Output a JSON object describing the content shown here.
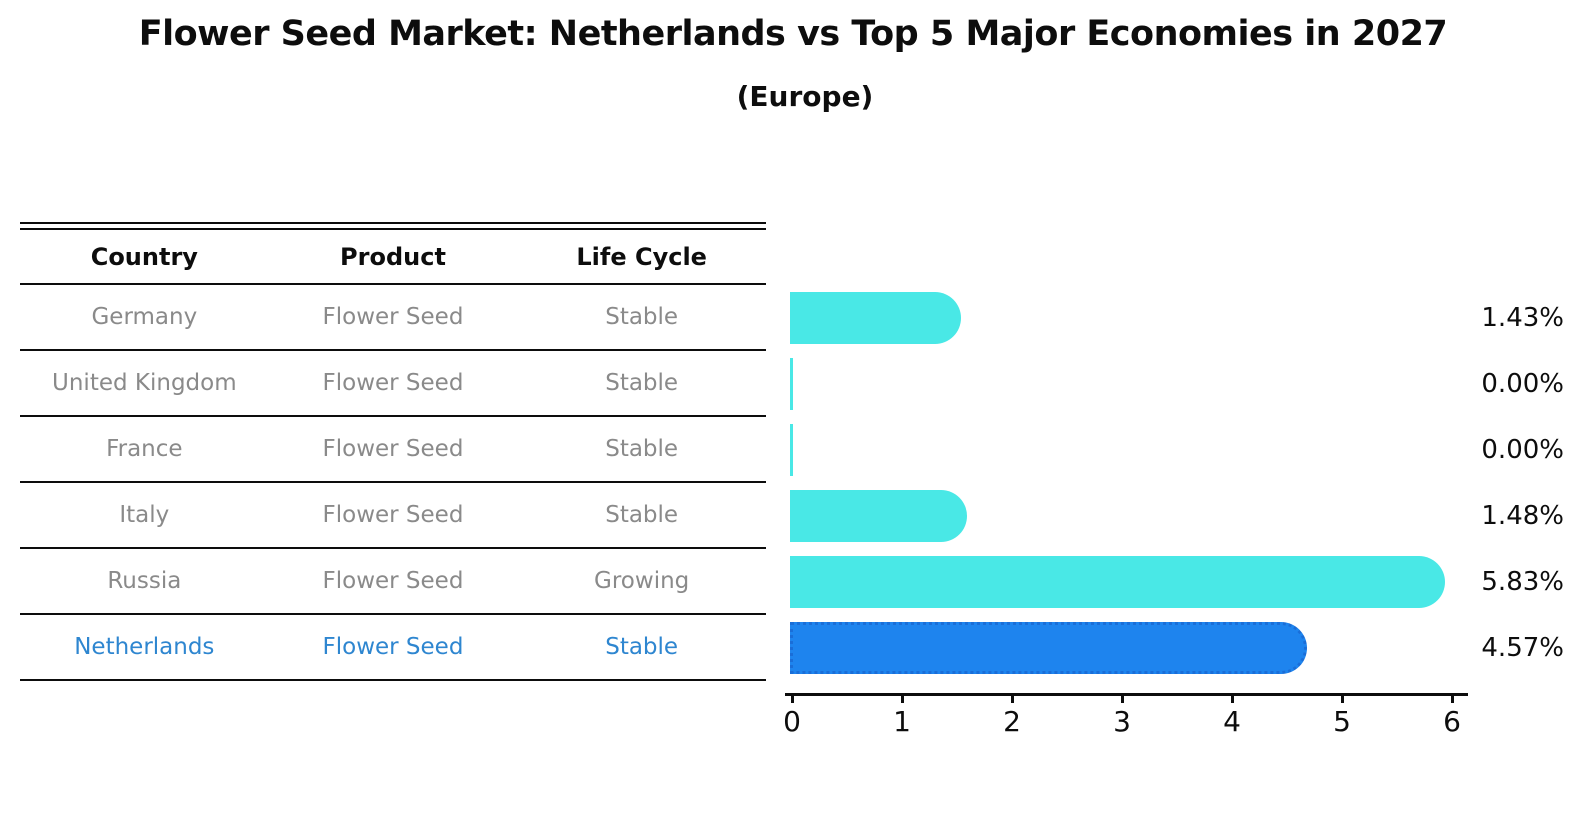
{
  "title": "Flower Seed Market: Netherlands vs Top 5 Major Economies in 2027",
  "subtitle": "(Europe)",
  "table": {
    "headers": [
      "Country",
      "Product",
      "Life Cycle"
    ],
    "rows": [
      {
        "country": "Germany",
        "product": "Flower Seed",
        "life_cycle": "Stable",
        "highlighted": false
      },
      {
        "country": "United Kingdom",
        "product": "Flower Seed",
        "life_cycle": "Stable",
        "highlighted": false
      },
      {
        "country": "France",
        "product": "Flower Seed",
        "life_cycle": "Stable",
        "highlighted": false
      },
      {
        "country": "Italy",
        "product": "Flower Seed",
        "life_cycle": "Stable",
        "highlighted": false
      },
      {
        "country": "Russia",
        "product": "Flower Seed",
        "life_cycle": "Growing",
        "highlighted": false
      },
      {
        "country": "Netherlands",
        "product": "Flower Seed",
        "life_cycle": "Stable",
        "highlighted": true
      }
    ]
  },
  "chart_data": {
    "type": "bar",
    "orientation": "horizontal",
    "title": "Flower Seed Market: Netherlands vs Top 5 Major Economies in 2027",
    "subtitle": "(Europe)",
    "categories": [
      "Germany",
      "United Kingdom",
      "France",
      "Italy",
      "Russia",
      "Netherlands"
    ],
    "values": [
      1.43,
      0.0,
      0.0,
      1.48,
      5.83,
      4.57
    ],
    "value_labels": [
      "1.43%",
      "0.00%",
      "0.00%",
      "1.48%",
      "5.83%",
      "4.57%"
    ],
    "xticks": [
      0,
      1,
      2,
      3,
      4,
      5,
      6
    ],
    "xlim": [
      0,
      6.15
    ],
    "grid": false,
    "legend": false,
    "highlight_index": 5,
    "bar_color": "#49e8e6",
    "highlight_bar_color": "#1e84ee",
    "highlight_border_color": "#1a6ed8"
  },
  "colors": {
    "header_text": "#0d0d0d",
    "row_text": "#8a8a8a",
    "highlight_row_text": "#2e86d0",
    "axis": "#0d0d0d",
    "background": "#ffffff"
  }
}
